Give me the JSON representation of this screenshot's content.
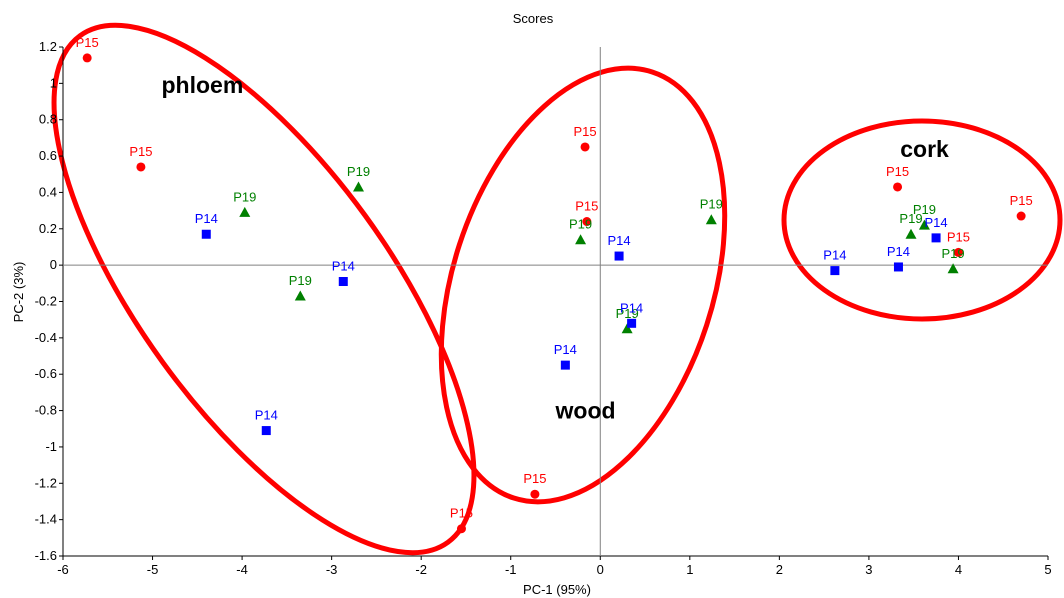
{
  "chart_data": {
    "type": "scatter",
    "title": "Scores",
    "xlabel": "PC-1 (95%)",
    "ylabel": "PC-2 (3%)",
    "xlim": [
      -6,
      5
    ],
    "ylim": [
      -1.6,
      1.2
    ],
    "xticks": [
      -6,
      -5,
      -4,
      -3,
      -2,
      -1,
      0,
      1,
      2,
      3,
      4,
      5
    ],
    "yticks": [
      1.2,
      1,
      0.8,
      0.6,
      0.4,
      0.2,
      0,
      -0.2,
      -0.4,
      -0.6,
      -0.8,
      -1,
      -1.2,
      -1.4,
      -1.6
    ],
    "grid": false,
    "series": [
      {
        "marker": "circle",
        "color": "#ff0000",
        "points": [
          {
            "x": -5.73,
            "y": 1.14,
            "label": "P15"
          },
          {
            "x": -5.13,
            "y": 0.54,
            "label": "P15"
          },
          {
            "x": -1.55,
            "y": -1.45,
            "label": "P15"
          },
          {
            "x": -0.73,
            "y": -1.26,
            "label": "P15"
          },
          {
            "x": -0.17,
            "y": 0.65,
            "label": "P15"
          },
          {
            "x": -0.15,
            "y": 0.24,
            "label": "P15"
          },
          {
            "x": 3.32,
            "y": 0.43,
            "label": "P15"
          },
          {
            "x": 4.0,
            "y": 0.07,
            "label": "P15"
          },
          {
            "x": 4.7,
            "y": 0.27,
            "label": "P15"
          }
        ]
      },
      {
        "marker": "triangle",
        "color": "#008000",
        "points": [
          {
            "x": -3.97,
            "y": 0.29,
            "label": "P19"
          },
          {
            "x": -2.7,
            "y": 0.43,
            "label": "P19"
          },
          {
            "x": -3.35,
            "y": -0.17,
            "label": "P19"
          },
          {
            "x": -0.22,
            "y": 0.14,
            "label": "P19"
          },
          {
            "x": 0.3,
            "y": -0.35,
            "label": "P19"
          },
          {
            "x": 1.24,
            "y": 0.25,
            "label": "P19"
          },
          {
            "x": 3.47,
            "y": 0.17,
            "label": "P19"
          },
          {
            "x": 3.62,
            "y": 0.22,
            "label": "P19"
          },
          {
            "x": 3.94,
            "y": -0.02,
            "label": "P19"
          }
        ]
      },
      {
        "marker": "square",
        "color": "#0000ff",
        "points": [
          {
            "x": -4.4,
            "y": 0.17,
            "label": "P14"
          },
          {
            "x": -2.87,
            "y": -0.09,
            "label": "P14"
          },
          {
            "x": -3.73,
            "y": -0.91,
            "label": "P14"
          },
          {
            "x": -0.39,
            "y": -0.55,
            "label": "P14"
          },
          {
            "x": 0.21,
            "y": 0.05,
            "label": "P14"
          },
          {
            "x": 0.35,
            "y": -0.32,
            "label": "P14"
          },
          {
            "x": 2.62,
            "y": -0.03,
            "label": "P14"
          },
          {
            "x": 3.33,
            "y": -0.01,
            "label": "P14"
          },
          {
            "x": 3.75,
            "y": 0.15,
            "label": "P14"
          }
        ]
      }
    ],
    "annotations": [
      {
        "text": "phloem",
        "x": -4.9,
        "y": 0.99
      },
      {
        "text": "wood",
        "x": -0.5,
        "y": -0.8
      },
      {
        "text": "cork",
        "x": 3.35,
        "y": 0.64
      },
      {
        "text": "cork",
        "x": 3.35,
        "y": 0.64
      }
    ]
  }
}
